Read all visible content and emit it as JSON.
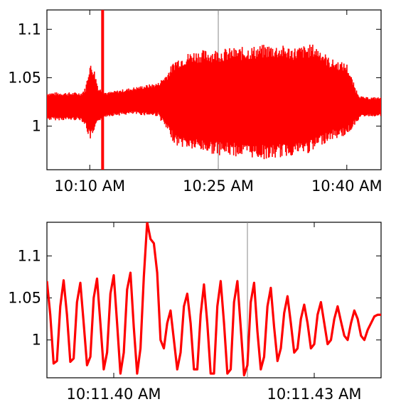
{
  "chart_data": [
    {
      "type": "line",
      "x_unit": "time",
      "x_range": [
        "10:05 AM",
        "10:44 AM"
      ],
      "ylim": [
        0.955,
        1.12
      ],
      "y_ticks": [
        1,
        1.05,
        1.1
      ],
      "y_tick_labels": [
        "1",
        "1.05",
        "1.1"
      ],
      "x_ticks": [
        "10:10 AM",
        "10:25 AM",
        "10:40 AM"
      ],
      "cursor_x": "10:25 AM",
      "series_color": "#ff0000",
      "envelope": {
        "x": [
          "10:05 AM",
          "10:09 AM",
          "10:09:30 AM",
          "10:10 AM",
          "10:10:30 AM",
          "10:11 AM",
          "10:12 AM",
          "10:15 AM",
          "10:18 AM",
          "10:19 AM",
          "10:20 AM",
          "10:22 AM",
          "10:25 AM",
          "10:28 AM",
          "10:31 AM",
          "10:34 AM",
          "10:36 AM",
          "10:37 AM",
          "10:38 AM",
          "10:40 AM",
          "10:41 AM",
          "10:41:30 AM",
          "10:42 AM",
          "10:44 AM"
        ],
        "upper": [
          1.035,
          1.035,
          1.04,
          1.065,
          1.06,
          1.04,
          1.035,
          1.04,
          1.045,
          1.055,
          1.07,
          1.078,
          1.08,
          1.082,
          1.085,
          1.082,
          1.085,
          1.08,
          1.07,
          1.065,
          1.04,
          1.032,
          1.03,
          1.03
        ],
        "lower": [
          1.006,
          1.006,
          1.0,
          0.985,
          0.99,
          1.005,
          1.01,
          1.012,
          1.01,
          0.995,
          0.98,
          0.975,
          0.97,
          0.968,
          0.965,
          0.97,
          0.972,
          0.98,
          0.985,
          0.99,
          1.002,
          1.008,
          1.01,
          1.01
        ]
      },
      "spike": {
        "x": "10:11:30 AM",
        "min": 0.955,
        "max": 1.12
      }
    },
    {
      "type": "line",
      "x_unit": "seconds",
      "x_range": [
        "10:11.39 AM",
        "10:11.44 AM"
      ],
      "ylim": [
        0.955,
        1.14
      ],
      "y_ticks": [
        1,
        1.05,
        1.1
      ],
      "y_tick_labels": [
        "1",
        "1.05",
        "1.1"
      ],
      "x_ticks": [
        "10:11.40 AM",
        "10:11.43 AM"
      ],
      "cursor_x": "10:11.42 AM",
      "series_color": "#ff0000",
      "samples": {
        "x_seconds": [
          0.0,
          0.018,
          0.036,
          0.054,
          0.072,
          0.09,
          0.108,
          0.126,
          0.144,
          0.162,
          0.18,
          0.198,
          0.216,
          0.234,
          0.252,
          0.27,
          0.288,
          0.306,
          0.324,
          0.342,
          0.36,
          0.378,
          0.396,
          0.414,
          0.432,
          0.45,
          0.468,
          0.486,
          0.504,
          0.522,
          0.54,
          0.558,
          0.576,
          0.594,
          0.612,
          0.63,
          0.648,
          0.666,
          0.684,
          0.702,
          0.72,
          0.738,
          0.756,
          0.774,
          0.792,
          0.81,
          0.828,
          0.846,
          0.864,
          0.882,
          0.9,
          0.918,
          0.936,
          0.954,
          0.972,
          0.99,
          1.008,
          1.026,
          1.044,
          1.062,
          1.08,
          1.098,
          1.116,
          1.134,
          1.152,
          1.17,
          1.188,
          1.206,
          1.224,
          1.242,
          1.26,
          1.278,
          1.296,
          1.314,
          1.332,
          1.35,
          1.368,
          1.386,
          1.404,
          1.422,
          1.44,
          1.458,
          1.476,
          1.494,
          1.512,
          1.53,
          1.548,
          1.566,
          1.584,
          1.602,
          1.62,
          1.638,
          1.656,
          1.674,
          1.692,
          1.71,
          1.728,
          1.746,
          1.764,
          1.782,
          1.8
        ],
        "y": [
          1.07,
          1.03,
          0.972,
          0.975,
          1.04,
          1.071,
          1.03,
          0.974,
          0.978,
          1.045,
          1.068,
          1.02,
          0.97,
          0.98,
          1.05,
          1.073,
          1.02,
          0.965,
          0.985,
          1.055,
          1.077,
          1.02,
          0.96,
          0.985,
          1.06,
          1.08,
          1.015,
          0.96,
          0.99,
          1.075,
          1.14,
          1.12,
          1.115,
          1.08,
          1.0,
          0.99,
          1.02,
          1.035,
          1.0,
          0.965,
          0.985,
          1.04,
          1.055,
          1.02,
          0.965,
          0.965,
          1.03,
          1.066,
          1.02,
          0.96,
          0.96,
          1.04,
          1.07,
          1.02,
          0.96,
          0.965,
          1.045,
          1.07,
          1.015,
          0.958,
          0.97,
          1.045,
          1.068,
          1.01,
          0.965,
          0.98,
          1.04,
          1.062,
          1.015,
          0.975,
          0.99,
          1.032,
          1.052,
          1.02,
          0.985,
          0.99,
          1.025,
          1.042,
          1.02,
          0.99,
          0.995,
          1.03,
          1.045,
          1.02,
          0.995,
          1.0,
          1.025,
          1.04,
          1.022,
          1.005,
          1.0,
          1.02,
          1.035,
          1.025,
          1.005,
          1.0,
          1.012,
          1.02,
          1.028,
          1.03,
          1.03
        ]
      }
    }
  ]
}
